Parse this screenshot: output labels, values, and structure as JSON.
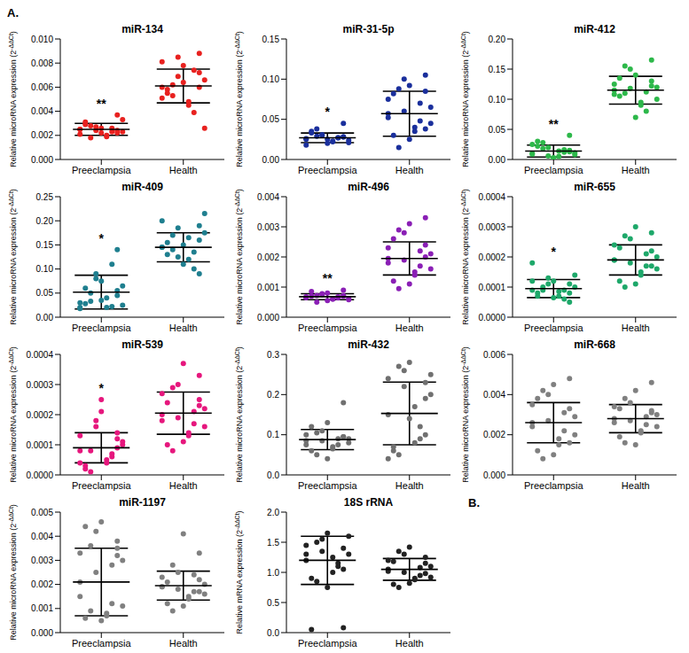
{
  "panel_labels": [
    "A.",
    "B."
  ],
  "chart_data": [
    {
      "type": "scatter",
      "title": "miR-134",
      "y_label": [
        "Relative microRNA expression (2",
        "-ΔΔCt",
        ")"
      ],
      "categories": [
        "Preeclampsia",
        "Health"
      ],
      "color": "#e8211f",
      "ylim": [
        0,
        0.01
      ],
      "yticks": [
        {
          "value": 0,
          "label": "0.000"
        },
        {
          "value": 0.002,
          "label": "0.002"
        },
        {
          "value": 0.004,
          "label": "0.004"
        },
        {
          "value": 0.006,
          "label": "0.006"
        },
        {
          "value": 0.008,
          "label": "0.008"
        },
        {
          "value": 0.01,
          "label": "0.010"
        }
      ],
      "groups": [
        {
          "values": [
            0.0021,
            0.0024,
            0.0019,
            0.0027,
            0.0031,
            0.0023,
            0.0026,
            0.0022,
            0.0028,
            0.0025,
            0.0037,
            0.002,
            0.0024,
            0.0029,
            0.0033,
            0.0023,
            0.0026,
            0.0018,
            0.0025,
            0.0022
          ],
          "mean": 0.0025,
          "sd": 0.0005,
          "annotation": "**"
        },
        {
          "values": [
            0.006,
            0.0072,
            0.0048,
            0.0085,
            0.0055,
            0.0066,
            0.0039,
            0.0078,
            0.0062,
            0.0051,
            0.0088,
            0.0045,
            0.0069,
            0.0058,
            0.0026,
            0.0074,
            0.0064,
            0.0053,
            0.0081,
            0.006
          ],
          "mean": 0.0061,
          "sd": 0.0014
        }
      ]
    },
    {
      "type": "scatter",
      "title": "miR-31-5p",
      "y_label": [
        "Relative microRNA expression (2",
        "-ΔΔCt",
        ")"
      ],
      "categories": [
        "Preeclampsia",
        "Health"
      ],
      "color": "#1a2f9c",
      "ylim": [
        0,
        0.15
      ],
      "yticks": [
        {
          "value": 0,
          "label": "0.00"
        },
        {
          "value": 0.05,
          "label": "0.05"
        },
        {
          "value": 0.1,
          "label": "0.10"
        },
        {
          "value": 0.15,
          "label": "0.15"
        }
      ],
      "groups": [
        {
          "values": [
            0.025,
            0.028,
            0.022,
            0.031,
            0.035,
            0.024,
            0.027,
            0.02,
            0.029,
            0.026,
            0.045,
            0.023,
            0.03,
            0.033,
            0.021,
            0.027,
            0.025,
            0.038,
            0.018,
            0.028
          ],
          "mean": 0.027,
          "sd": 0.006,
          "annotation": "*"
        },
        {
          "values": [
            0.057,
            0.085,
            0.04,
            0.1,
            0.03,
            0.065,
            0.048,
            0.092,
            0.015,
            0.075,
            0.105,
            0.035,
            0.06,
            0.082,
            0.045,
            0.07,
            0.025,
            0.088,
            0.052,
            0.038
          ],
          "mean": 0.057,
          "sd": 0.028
        }
      ]
    },
    {
      "type": "scatter",
      "title": "miR-412",
      "y_label": [
        "Relative microRNA expression (2",
        "-ΔΔCt",
        ")"
      ],
      "categories": [
        "Preeclampsia",
        "Health"
      ],
      "color": "#2db84a",
      "ylim": [
        0,
        0.2
      ],
      "yticks": [
        {
          "value": 0,
          "label": "0.00"
        },
        {
          "value": 0.05,
          "label": "0.05"
        },
        {
          "value": 0.1,
          "label": "0.10"
        },
        {
          "value": 0.15,
          "label": "0.15"
        },
        {
          "value": 0.2,
          "label": "0.20"
        }
      ],
      "groups": [
        {
          "values": [
            0.01,
            0.015,
            0.005,
            0.02,
            0.03,
            0.008,
            0.012,
            0.003,
            0.018,
            0.025,
            0.04,
            0.014,
            0.006,
            0.022,
            0.011,
            0.016,
            0.002,
            0.028,
            0.009,
            0.013
          ],
          "mean": 0.014,
          "sd": 0.01,
          "annotation": "**"
        },
        {
          "values": [
            0.115,
            0.13,
            0.095,
            0.15,
            0.105,
            0.12,
            0.08,
            0.14,
            0.11,
            0.125,
            0.165,
            0.09,
            0.118,
            0.135,
            0.1,
            0.112,
            0.07,
            0.155,
            0.108,
            0.122
          ],
          "mean": 0.115,
          "sd": 0.023
        }
      ]
    },
    {
      "type": "scatter",
      "title": "miR-409",
      "y_label": [
        "Relative microRNA expression (2",
        "-ΔΔCt",
        ")"
      ],
      "categories": [
        "Preeclampsia",
        "Health"
      ],
      "color": "#1f7f8f",
      "ylim": [
        0,
        0.25
      ],
      "yticks": [
        {
          "value": 0,
          "label": "0.00"
        },
        {
          "value": 0.05,
          "label": "0.05"
        },
        {
          "value": 0.1,
          "label": "0.10"
        },
        {
          "value": 0.15,
          "label": "0.15"
        },
        {
          "value": 0.2,
          "label": "0.20"
        },
        {
          "value": 0.25,
          "label": "0.25"
        }
      ],
      "groups": [
        {
          "values": [
            0.03,
            0.045,
            0.02,
            0.08,
            0.06,
            0.025,
            0.11,
            0.035,
            0.05,
            0.02,
            0.14,
            0.04,
            0.09,
            0.028,
            0.065,
            0.022,
            0.075,
            0.033,
            0.018,
            0.055
          ],
          "mean": 0.052,
          "sd": 0.035,
          "annotation": "*"
        },
        {
          "values": [
            0.145,
            0.16,
            0.12,
            0.185,
            0.13,
            0.175,
            0.1,
            0.15,
            0.14,
            0.2,
            0.09,
            0.165,
            0.125,
            0.155,
            0.215,
            0.135,
            0.11,
            0.17,
            0.145,
            0.19
          ],
          "mean": 0.145,
          "sd": 0.03
        }
      ]
    },
    {
      "type": "scatter",
      "title": "miR-496",
      "y_label": [
        "Relative microRNA expression (2",
        "-ΔΔCt",
        ")"
      ],
      "categories": [
        "Preeclampsia",
        "Health"
      ],
      "color": "#8a1fb5",
      "ylim": [
        0,
        0.004
      ],
      "yticks": [
        {
          "value": 0,
          "label": "0.000"
        },
        {
          "value": 0.001,
          "label": "0.001"
        },
        {
          "value": 0.002,
          "label": "0.002"
        },
        {
          "value": 0.003,
          "label": "0.003"
        },
        {
          "value": 0.004,
          "label": "0.004"
        }
      ],
      "groups": [
        {
          "values": [
            0.00065,
            0.0007,
            0.0006,
            0.00075,
            0.00085,
            0.00062,
            0.00068,
            0.00055,
            0.00072,
            0.00066,
            0.0009,
            0.0006,
            0.00078,
            0.0007,
            0.00058,
            0.00064,
            0.0008,
            0.0005,
            0.00068,
            0.00071
          ],
          "mean": 0.00068,
          "sd": 0.0001,
          "annotation": "**"
        },
        {
          "values": [
            0.00195,
            0.0024,
            0.0015,
            0.0028,
            0.0012,
            0.0021,
            0.0017,
            0.0031,
            0.00095,
            0.0023,
            0.0033,
            0.0014,
            0.0019,
            0.0026,
            0.0016,
            0.0022,
            0.0011,
            0.0029,
            0.0018,
            0.002
          ],
          "mean": 0.00195,
          "sd": 0.00055
        }
      ]
    },
    {
      "type": "scatter",
      "title": "miR-655",
      "y_label": [
        "Relative microRNA expression (2",
        "-ΔΔCt",
        ")"
      ],
      "categories": [
        "Preeclampsia",
        "Health"
      ],
      "color": "#1ea86a",
      "ylim": [
        0,
        0.0004
      ],
      "yticks": [
        {
          "value": 0,
          "label": "0.0000"
        },
        {
          "value": 0.0001,
          "label": "0.0001"
        },
        {
          "value": 0.0002,
          "label": "0.0002"
        },
        {
          "value": 0.0003,
          "label": "0.0003"
        },
        {
          "value": 0.0004,
          "label": "0.0004"
        }
      ],
      "groups": [
        {
          "values": [
            9e-05,
            0.00011,
            7e-05,
            0.00013,
            8e-05,
            0.0001,
            6e-05,
            0.00012,
            9e-05,
            0.00018,
            5e-05,
            8.5e-05,
            0.00011,
            7e-05,
            0.00014,
            9e-05,
            6.5e-05,
            0.0001,
            0.00012,
            8e-05
          ],
          "mean": 9.5e-05,
          "sd": 3e-05,
          "annotation": "*"
        },
        {
          "values": [
            0.00019,
            0.00022,
            0.00015,
            0.00026,
            0.00012,
            0.0002,
            0.00017,
            0.0003,
            0.0001,
            0.00024,
            0.00028,
            0.00014,
            0.00018,
            0.00023,
            0.00016,
            0.00021,
            0.00011,
            0.00027,
            0.00019,
            0.00017
          ],
          "mean": 0.00019,
          "sd": 5e-05
        }
      ]
    },
    {
      "type": "scatter",
      "title": "miR-539",
      "y_label": [
        "Relative microRNA expression (2",
        "-ΔΔCt",
        ")"
      ],
      "categories": [
        "Preeclampsia",
        "Health"
      ],
      "color": "#e6177d",
      "ylim": [
        0,
        0.0004
      ],
      "yticks": [
        {
          "value": 0,
          "label": "0.0000"
        },
        {
          "value": 0.0001,
          "label": "0.0001"
        },
        {
          "value": 0.0002,
          "label": "0.0002"
        },
        {
          "value": 0.0003,
          "label": "0.0003"
        },
        {
          "value": 0.0004,
          "label": "0.0004"
        }
      ],
      "groups": [
        {
          "values": [
            8e-05,
            0.00012,
            4e-05,
            0.00016,
            2e-05,
            0.0001,
            6e-05,
            0.00025,
            1e-05,
            0.00013,
            9e-05,
            5e-05,
            0.00018,
            3e-05,
            0.00011,
            7e-05,
            0.00021,
            8e-05,
            4e-05,
            0.00014
          ],
          "mean": 9e-05,
          "sd": 5e-05,
          "annotation": "*"
        },
        {
          "values": [
            0.0002,
            0.00025,
            0.00014,
            0.0003,
            0.0001,
            0.00022,
            0.00017,
            0.00037,
            8e-05,
            0.00027,
            0.00033,
            0.00013,
            0.00019,
            0.00024,
            0.00016,
            0.00021,
            0.00011,
            0.00029,
            0.00018,
            0.00023
          ],
          "mean": 0.000205,
          "sd": 7e-05
        }
      ]
    },
    {
      "type": "scatter",
      "title": "miR-432",
      "y_label": [
        "Relative microRNA expression (2",
        "-ΔΔCt",
        ")"
      ],
      "categories": [
        "Preeclampsia",
        "Health"
      ],
      "color": "#707070",
      "ylim": [
        0,
        0.3
      ],
      "yticks": [
        {
          "value": 0,
          "label": "0.0"
        },
        {
          "value": 0.1,
          "label": "0.1"
        },
        {
          "value": 0.2,
          "label": "0.2"
        },
        {
          "value": 0.3,
          "label": "0.3"
        }
      ],
      "groups": [
        {
          "values": [
            0.085,
            0.095,
            0.07,
            0.11,
            0.06,
            0.09,
            0.075,
            0.13,
            0.05,
            0.1,
            0.18,
            0.065,
            0.085,
            0.12,
            0.08,
            0.09,
            0.04,
            0.105,
            0.075,
            0.095
          ],
          "mean": 0.088,
          "sd": 0.025
        },
        {
          "values": [
            0.15,
            0.23,
            0.08,
            0.26,
            0.07,
            0.2,
            0.12,
            0.28,
            0.05,
            0.24,
            0.1,
            0.17,
            0.22,
            0.06,
            0.25,
            0.09,
            0.14,
            0.27,
            0.04,
            0.19
          ],
          "mean": 0.153,
          "sd": 0.078
        }
      ]
    },
    {
      "type": "scatter",
      "title": "miR-668",
      "y_label": [
        "Relative microRNA expression (2",
        "-ΔΔCt",
        ")"
      ],
      "categories": [
        "Preeclampsia",
        "Health"
      ],
      "color": "#808080",
      "ylim": [
        0,
        0.006
      ],
      "yticks": [
        {
          "value": 0,
          "label": "0.000"
        },
        {
          "value": 0.002,
          "label": "0.002"
        },
        {
          "value": 0.004,
          "label": "0.004"
        },
        {
          "value": 0.006,
          "label": "0.006"
        }
      ],
      "groups": [
        {
          "values": [
            0.0026,
            0.0033,
            0.0018,
            0.004,
            0.0012,
            0.0029,
            0.0022,
            0.0045,
            0.0008,
            0.0035,
            0.0048,
            0.0015,
            0.0027,
            0.0038,
            0.002,
            0.0031,
            0.001,
            0.0042,
            0.0024,
            0.0016
          ],
          "mean": 0.0026,
          "sd": 0.001
        },
        {
          "values": [
            0.0028,
            0.0032,
            0.0022,
            0.0036,
            0.0019,
            0.003,
            0.0025,
            0.0042,
            0.0016,
            0.0034,
            0.0046,
            0.0021,
            0.0027,
            0.0033,
            0.0024,
            0.0029,
            0.0015,
            0.0038,
            0.0026,
            0.0031
          ],
          "mean": 0.0028,
          "sd": 0.0007
        }
      ]
    },
    {
      "type": "scatter",
      "title": "miR-1197",
      "y_label": [
        "Relative microRNA expression (2",
        "-ΔΔCt",
        ")"
      ],
      "categories": [
        "Preeclampsia",
        "Health"
      ],
      "color": "#808080",
      "ylim": [
        0,
        0.005
      ],
      "yticks": [
        {
          "value": 0,
          "label": "0.000"
        },
        {
          "value": 0.001,
          "label": "0.001"
        },
        {
          "value": 0.002,
          "label": "0.002"
        },
        {
          "value": 0.003,
          "label": "0.003"
        },
        {
          "value": 0.004,
          "label": "0.004"
        },
        {
          "value": 0.005,
          "label": "0.005"
        }
      ],
      "groups": [
        {
          "values": [
            0.0021,
            0.0035,
            0.0008,
            0.0042,
            0.0006,
            0.003,
            0.0012,
            0.0046,
            0.0009,
            0.0033,
            0.0038,
            0.0007,
            0.0025,
            0.0044,
            0.0011,
            0.0028,
            0.0005,
            0.0036,
            0.0015,
            0.0032
          ],
          "mean": 0.0021,
          "sd": 0.0014
        },
        {
          "values": [
            0.0019,
            0.0022,
            0.0015,
            0.0025,
            0.0012,
            0.002,
            0.0017,
            0.0041,
            0.0009,
            0.0023,
            0.0033,
            0.0014,
            0.0018,
            0.0021,
            0.0016,
            0.0024,
            0.0011,
            0.0028,
            0.0019,
            0.0017
          ],
          "mean": 0.00195,
          "sd": 0.0006
        }
      ]
    },
    {
      "type": "scatter",
      "title": "18S rRNA",
      "y_label": [
        "Relative mRNA expression (2",
        "-ΔΔCt",
        ")"
      ],
      "categories": [
        "Preeclampsia",
        "Health"
      ],
      "color": "#222222",
      "ylim": [
        0,
        2
      ],
      "yticks": [
        {
          "value": 0,
          "label": "0.0"
        },
        {
          "value": 0.5,
          "label": "0.5"
        },
        {
          "value": 1,
          "label": "1.0"
        },
        {
          "value": 1.5,
          "label": "1.5"
        },
        {
          "value": 2,
          "label": "2.0"
        }
      ],
      "groups": [
        {
          "values": [
            1.2,
            1.4,
            1.0,
            1.55,
            0.05,
            1.3,
            1.1,
            1.65,
            0.85,
            1.45,
            0.08,
            1.25,
            1.35,
            0.9,
            1.6,
            1.15,
            0.75,
            1.5,
            1.3,
            1.05
          ],
          "mean": 1.2,
          "sd": 0.4
        },
        {
          "values": [
            1.05,
            1.15,
            0.9,
            1.3,
            0.8,
            1.1,
            0.95,
            1.42,
            0.75,
            1.2,
            1.25,
            0.88,
            1.0,
            1.18,
            0.92,
            1.08,
            0.82,
            1.35,
            1.02,
            0.98
          ],
          "mean": 1.05,
          "sd": 0.18
        }
      ]
    }
  ]
}
